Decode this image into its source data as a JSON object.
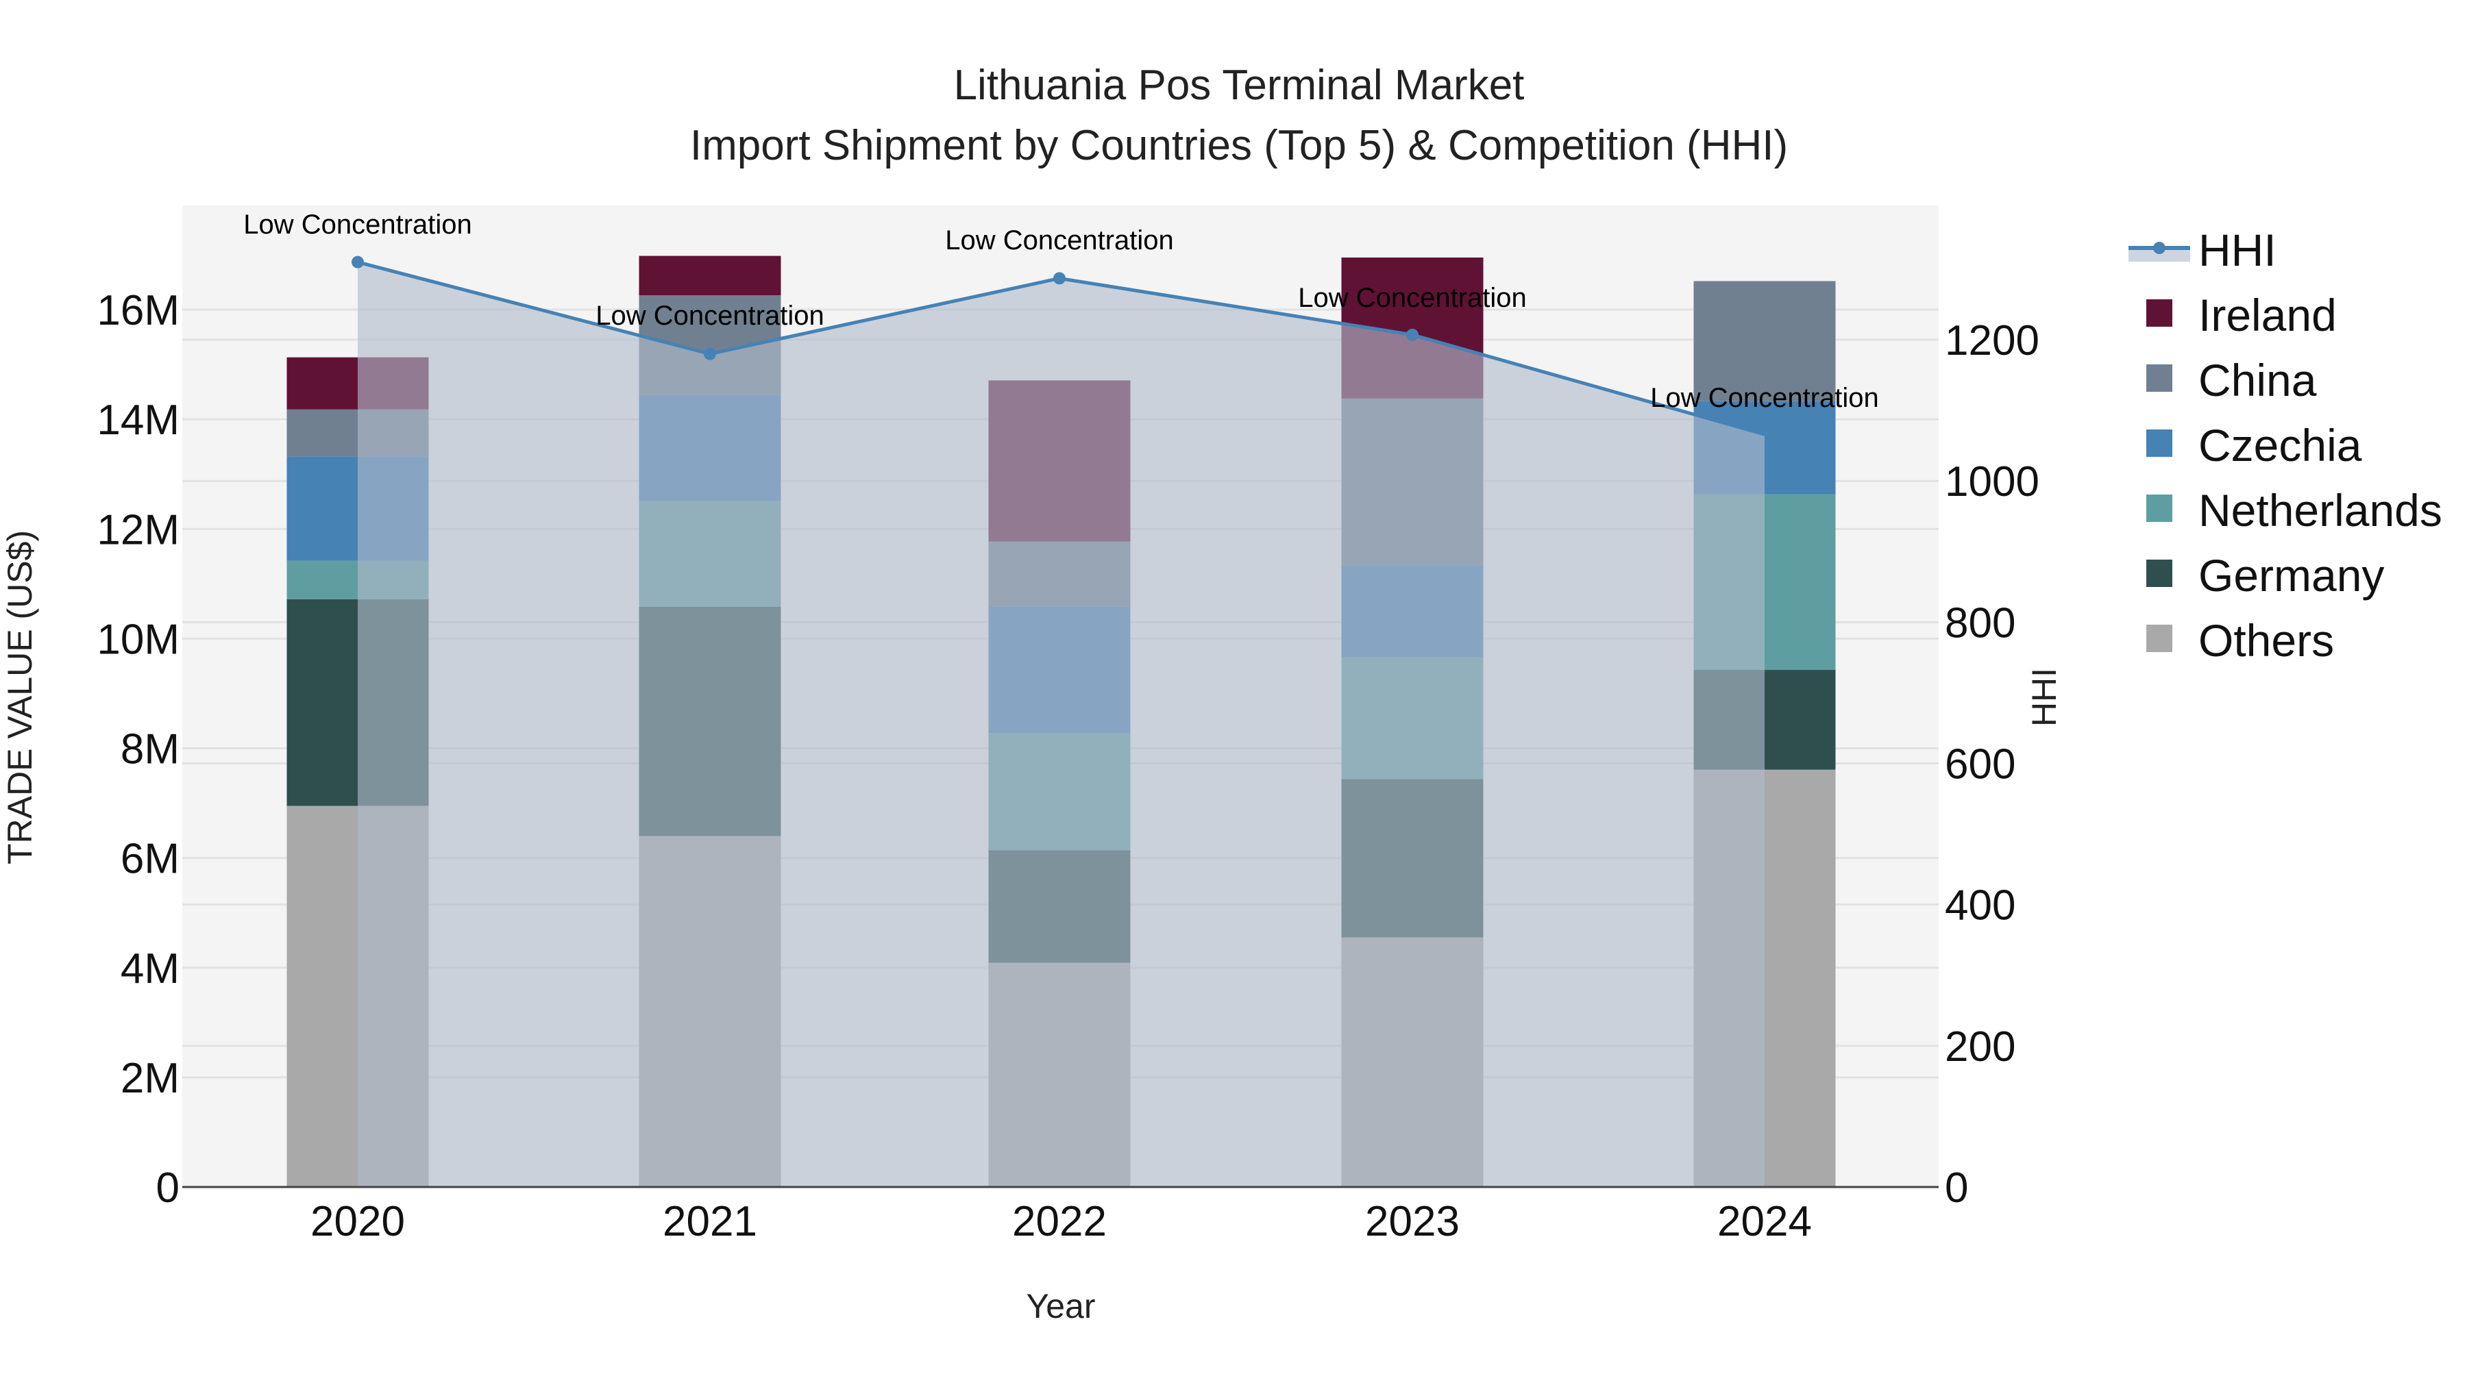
{
  "title": {
    "line1": "Lithuania Pos Terminal Market",
    "line2": "Import Shipment by Countries (Top 5) & Competition (HHI)"
  },
  "axes": {
    "x_title": "Year",
    "y_left_title": "TRADE VALUE (US$)",
    "y_right_title": "HHI",
    "y_left_ticks": [
      "0",
      "2M",
      "4M",
      "6M",
      "8M",
      "10M",
      "12M",
      "14M",
      "16M"
    ],
    "y_right_ticks": [
      "0",
      "200",
      "400",
      "600",
      "800",
      "1000",
      "1200"
    ],
    "x_ticks": [
      "2020",
      "2021",
      "2022",
      "2023",
      "2024"
    ]
  },
  "legend": {
    "items": [
      {
        "label": "HHI",
        "color": "#4682b4",
        "kind": "line"
      },
      {
        "label": "Ireland",
        "color": "#601235",
        "kind": "bar"
      },
      {
        "label": "China",
        "color": "#708090",
        "kind": "bar"
      },
      {
        "label": "Czechia",
        "color": "#4682b4",
        "kind": "bar"
      },
      {
        "label": "Netherlands",
        "color": "#5f9ea0",
        "kind": "bar"
      },
      {
        "label": "Germany",
        "color": "#2f4f4f",
        "kind": "bar"
      },
      {
        "label": "Others",
        "color": "#a9a9a9",
        "kind": "bar"
      }
    ]
  },
  "annotations": [
    "Low Concentration",
    "Low Concentration",
    "Low Concentration",
    "Low Concentration",
    "Low Concentration"
  ],
  "colors": {
    "plot_bg": "#f4f4f4",
    "grid": "#e2e2e2",
    "hhi_line": "#4682b4",
    "hhi_fill": "rgba(176,188,204,0.62)"
  },
  "chart_data": {
    "type": "bar",
    "subtype": "stacked bar + line (dual axis)",
    "title": "Lithuania Pos Terminal Market — Import Shipment by Countries (Top 5) & Competition (HHI)",
    "xlabel": "Year",
    "ylabel": "TRADE VALUE (US$)",
    "y2label": "HHI",
    "categories": [
      "2020",
      "2021",
      "2022",
      "2023",
      "2024"
    ],
    "ylim": [
      0,
      17.8
    ],
    "y_unit": "M US$",
    "y2lim": [
      0,
      1390
    ],
    "grid": true,
    "legend_position": "right",
    "stack_order_bottom_to_top": [
      "Others",
      "Germany",
      "Netherlands",
      "Czechia",
      "China",
      "Ireland"
    ],
    "series": [
      {
        "name": "Others",
        "color": "#a9a9a9",
        "values": [
          6.95,
          6.4,
          4.09,
          4.55,
          7.61
        ]
      },
      {
        "name": "Germany",
        "color": "#2f4f4f",
        "values": [
          3.77,
          4.18,
          2.05,
          2.89,
          1.82
        ]
      },
      {
        "name": "Netherlands",
        "color": "#5f9ea0",
        "values": [
          0.7,
          1.93,
          2.14,
          2.22,
          3.2
        ]
      },
      {
        "name": "Czechia",
        "color": "#4682b4",
        "values": [
          1.9,
          1.93,
          2.31,
          1.67,
          1.7
        ]
      },
      {
        "name": "China",
        "color": "#708090",
        "values": [
          0.86,
          1.82,
          1.18,
          3.05,
          2.19
        ]
      },
      {
        "name": "Ireland",
        "color": "#601235",
        "values": [
          0.95,
          0.72,
          2.94,
          2.57,
          0
        ]
      },
      {
        "name": "HHI",
        "axis": "right",
        "type": "line+area",
        "color": "#4682b4",
        "values": [
          1310,
          1180,
          1287,
          1207,
          1066
        ]
      }
    ],
    "annotations": [
      {
        "x": "2020",
        "text": "Low Concentration"
      },
      {
        "x": "2021",
        "text": "Low Concentration"
      },
      {
        "x": "2022",
        "text": "Low Concentration"
      },
      {
        "x": "2023",
        "text": "Low Concentration"
      },
      {
        "x": "2024",
        "text": "Low Concentration"
      }
    ]
  }
}
